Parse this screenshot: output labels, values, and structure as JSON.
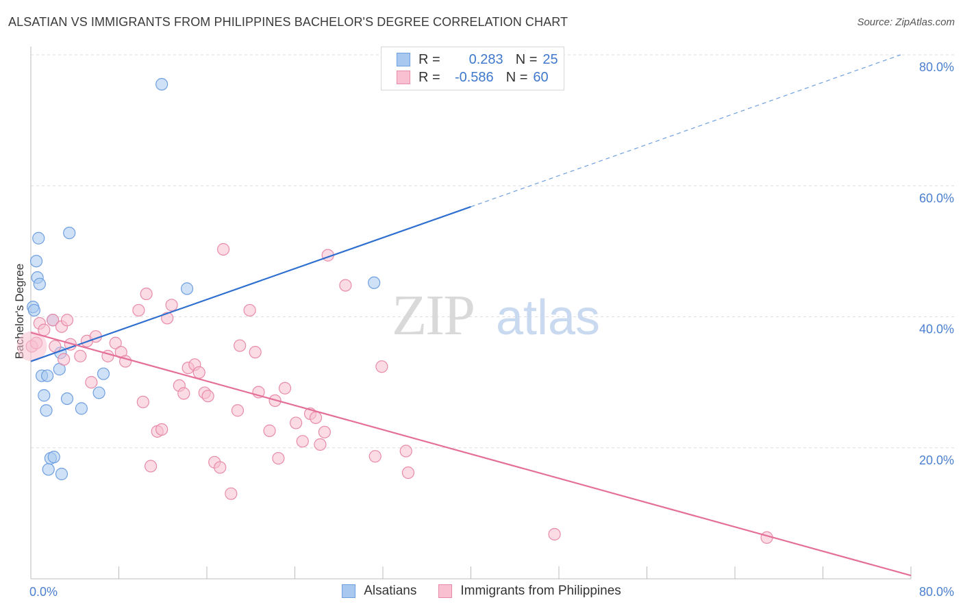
{
  "title": "ALSATIAN VS IMMIGRANTS FROM PHILIPPINES BACHELOR'S DEGREE CORRELATION CHART",
  "source": "Source: ZipAtlas.com",
  "watermark": {
    "zip": "ZIP",
    "atlas": "atlas"
  },
  "legend_top": {
    "rows": [
      {
        "r_label": "R =",
        "r_value": "0.283",
        "n_label": "N =",
        "n_value": "25",
        "color": "#a8c8f0",
        "border": "#6d9ee0"
      },
      {
        "r_label": "R =",
        "r_value": "-0.586",
        "n_label": "N =",
        "n_value": "60",
        "color": "#f8c0d0",
        "border": "#e88aa8"
      }
    ]
  },
  "bottom_legend": {
    "items": [
      {
        "label": "Alsatians",
        "color": "#a8c8f0",
        "border": "#6d9ee0"
      },
      {
        "label": "Immigrants from Philippines",
        "color": "#f8c0d0",
        "border": "#e88aa8"
      }
    ]
  },
  "chart_data": {
    "type": "scatter",
    "xlabel": "",
    "ylabel": "Bachelor's Degree",
    "xlim": [
      0,
      80
    ],
    "ylim": [
      0,
      80
    ],
    "x_tick_labels": [
      "0.0%",
      "80.0%"
    ],
    "y_tick_labels": [
      {
        "value": 20,
        "label": "20.0%"
      },
      {
        "value": 40,
        "label": "40.0%"
      },
      {
        "value": 60,
        "label": "60.0%"
      },
      {
        "value": 80,
        "label": "80.0%"
      }
    ],
    "grid": true,
    "series": [
      {
        "name": "Alsatians",
        "color": "#6d9ee0",
        "fill": "#a8c8f0",
        "points": [
          [
            0.2,
            41.5
          ],
          [
            0.3,
            41.0
          ],
          [
            0.5,
            48.5
          ],
          [
            0.6,
            46.0
          ],
          [
            0.7,
            52.0
          ],
          [
            0.8,
            45.0
          ],
          [
            1.0,
            31.0
          ],
          [
            1.2,
            28.0
          ],
          [
            1.4,
            25.7
          ],
          [
            1.5,
            31.0
          ],
          [
            1.6,
            16.7
          ],
          [
            1.8,
            18.4
          ],
          [
            2.0,
            39.5
          ],
          [
            2.1,
            18.6
          ],
          [
            2.6,
            32.0
          ],
          [
            2.8,
            16.0
          ],
          [
            2.7,
            34.5
          ],
          [
            3.3,
            27.5
          ],
          [
            3.5,
            52.8
          ],
          [
            4.6,
            26.0
          ],
          [
            6.2,
            28.4
          ],
          [
            6.6,
            31.3
          ],
          [
            11.9,
            75.5
          ],
          [
            14.2,
            44.3
          ],
          [
            31.2,
            45.2
          ]
        ],
        "trend": {
          "x": [
            0,
            40
          ],
          "y": [
            33.2,
            56.8
          ],
          "extend_dashed_to": [
            80,
            80.0
          ]
        }
      },
      {
        "name": "Immigrants from Philippines",
        "color": "#e88aa8",
        "fill": "#f8c0d0",
        "points": [
          [
            0.1,
            35.5
          ],
          [
            0.8,
            39.0
          ],
          [
            1.2,
            38.0
          ],
          [
            2.0,
            39.5
          ],
          [
            2.8,
            38.5
          ],
          [
            3.3,
            39.5
          ],
          [
            2.2,
            35.5
          ],
          [
            3.0,
            33.5
          ],
          [
            3.6,
            35.8
          ],
          [
            4.5,
            34.0
          ],
          [
            5.1,
            36.3
          ],
          [
            5.5,
            30.0
          ],
          [
            5.9,
            37.0
          ],
          [
            7.0,
            34.0
          ],
          [
            7.7,
            36.0
          ],
          [
            8.2,
            34.6
          ],
          [
            8.6,
            33.2
          ],
          [
            9.8,
            41.0
          ],
          [
            10.2,
            27.0
          ],
          [
            10.5,
            43.5
          ],
          [
            10.9,
            17.2
          ],
          [
            11.5,
            22.5
          ],
          [
            11.9,
            22.8
          ],
          [
            12.4,
            39.8
          ],
          [
            12.8,
            41.8
          ],
          [
            13.5,
            29.5
          ],
          [
            13.9,
            28.3
          ],
          [
            14.3,
            32.2
          ],
          [
            14.9,
            32.7
          ],
          [
            15.3,
            31.5
          ],
          [
            15.8,
            28.4
          ],
          [
            16.1,
            27.9
          ],
          [
            16.7,
            17.8
          ],
          [
            17.2,
            17.0
          ],
          [
            17.5,
            50.3
          ],
          [
            18.2,
            13.0
          ],
          [
            18.8,
            25.7
          ],
          [
            19.0,
            35.6
          ],
          [
            19.9,
            41.0
          ],
          [
            20.4,
            34.6
          ],
          [
            20.7,
            28.5
          ],
          [
            21.7,
            22.6
          ],
          [
            22.2,
            27.2
          ],
          [
            22.5,
            18.4
          ],
          [
            23.1,
            29.1
          ],
          [
            24.1,
            23.8
          ],
          [
            24.7,
            21.0
          ],
          [
            25.4,
            25.2
          ],
          [
            25.9,
            24.6
          ],
          [
            26.3,
            20.5
          ],
          [
            26.7,
            22.4
          ],
          [
            27.0,
            49.4
          ],
          [
            28.6,
            44.8
          ],
          [
            31.3,
            18.7
          ],
          [
            31.9,
            32.4
          ],
          [
            34.1,
            19.5
          ],
          [
            34.3,
            16.2
          ],
          [
            47.6,
            6.8
          ],
          [
            66.9,
            6.3
          ],
          [
            0.5,
            36.0
          ]
        ],
        "trend": {
          "x": [
            0,
            80
          ],
          "y": [
            37.6,
            0.5
          ]
        }
      }
    ]
  }
}
